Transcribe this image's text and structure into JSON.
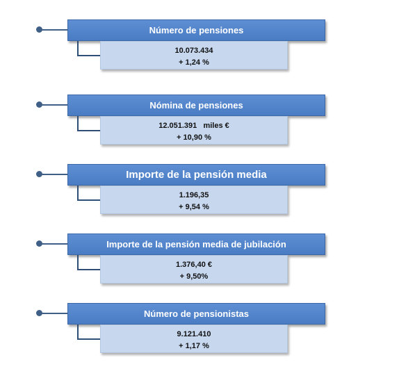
{
  "items": [
    {
      "title": "Número de pensiones",
      "value": "10.073.434",
      "change": "+ 1,24 %"
    },
    {
      "title": "Nómina de pensiones",
      "value": "12.051.391   miles €",
      "change": "+ 10,90 %"
    },
    {
      "title": "Importe de la pensión media",
      "value": "1.196,35",
      "change": "+ 9,54 %"
    },
    {
      "title": "Importe de la pensión media de jubilación",
      "value": "1.376,40 €",
      "change": "+ 9,50%"
    },
    {
      "title": "Número de pensionistas",
      "value": "9.121.410",
      "change": "+ 1,17 %"
    }
  ]
}
